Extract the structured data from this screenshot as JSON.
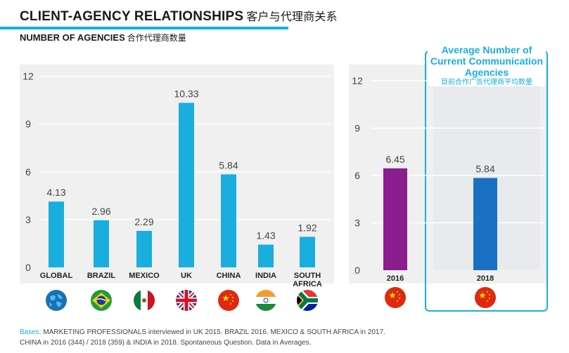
{
  "header": {
    "title": "CLIENT-AGENCY RELATIONSHIPS",
    "title_cn": "客户与代理商关系",
    "subtitle": "NUMBER OF AGENCIES",
    "subtitle_cn": "合作代理商数量"
  },
  "highlight": {
    "label_en": "Average Number of Current Communication Agencies",
    "label_cn": "目前合作广告代理商平均数量"
  },
  "footnote": {
    "label": "Bases:",
    "text": "MARKETING PROFESSIONALS interviewed in UK 2015. BRAZIL 2016. MEXICO & SOUTH AFRICA in 2017.",
    "text2": "CHINA in 2016 (344) / 2018 (359) & INDIA in 2018. Spontaneous Question. Data in Averages."
  },
  "colors": {
    "accent": "#1aaede",
    "bar_blue": "#1aaede",
    "bar_purple": "#8c1d8f",
    "bar_darkblue": "#1a70c4"
  },
  "chart_data": [
    {
      "type": "bar",
      "title": "NUMBER OF AGENCIES",
      "categories": [
        "GLOBAL",
        "BRAZIL",
        "MEXICO",
        "UK",
        "CHINA",
        "INDIA",
        "SOUTH AFRICA"
      ],
      "category_lines": [
        [
          "GLOBAL"
        ],
        [
          "BRAZIL"
        ],
        [
          "MEXICO"
        ],
        [
          "UK"
        ],
        [
          "CHINA"
        ],
        [
          "INDIA"
        ],
        [
          "SOUTH",
          "AFRICA"
        ]
      ],
      "values": [
        4.13,
        2.96,
        2.29,
        10.33,
        5.84,
        1.43,
        1.92
      ],
      "value_labels": [
        "4.13",
        "2.96",
        "2.29",
        "10.33",
        "5.84",
        "1.43",
        "1.92"
      ],
      "flags": [
        "globe-icon",
        "brazil-flag-icon",
        "mexico-flag-icon",
        "uk-flag-icon",
        "china-flag-icon",
        "india-flag-icon",
        "south-africa-flag-icon"
      ],
      "yticks": [
        "0",
        "3",
        "6",
        "9",
        "12"
      ],
      "ylim": [
        0,
        12
      ],
      "grid": true
    },
    {
      "type": "bar",
      "title": "Average Number of Current Communication Agencies",
      "categories": [
        "2016",
        "2018"
      ],
      "values": [
        6.45,
        5.84
      ],
      "value_labels": [
        "6.45",
        "5.84"
      ],
      "flags": [
        "china-flag-icon",
        "china-flag-icon"
      ],
      "yticks": [
        "0",
        "3",
        "6",
        "9",
        "12"
      ],
      "ylim": [
        0,
        12
      ],
      "grid": true
    }
  ]
}
